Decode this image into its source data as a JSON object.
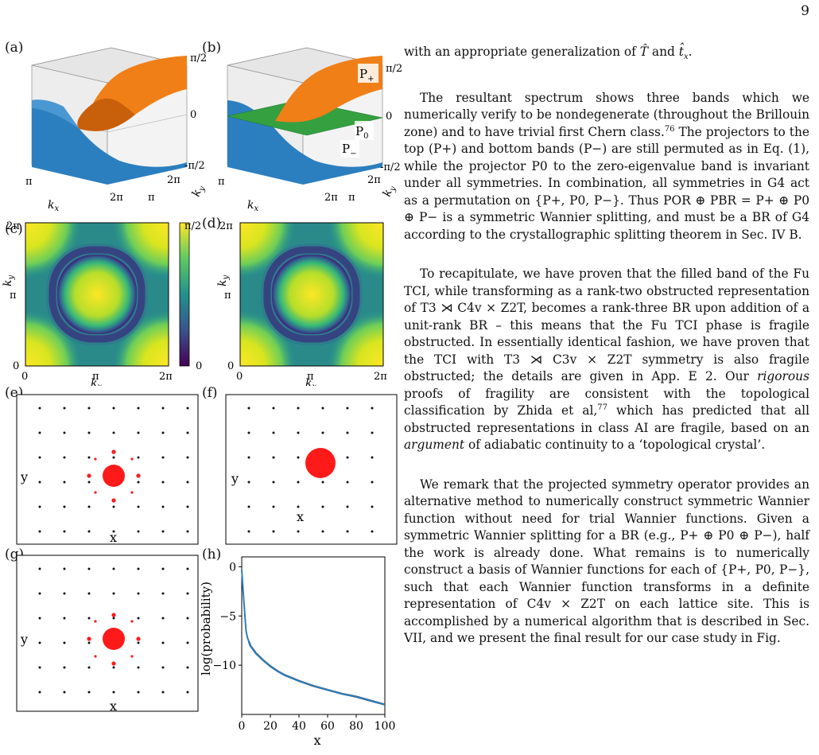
{
  "page_number": "9",
  "figure": {
    "panel_labels": {
      "a": "(a)",
      "b": "(b)",
      "c": "(c)",
      "d": "(d)",
      "e": "(e)",
      "f": "(f)",
      "g": "(g)",
      "h": "(h)"
    },
    "surface_ticks": {
      "z_top": "π/2",
      "z_mid": "0",
      "z_bottom": "-π/2",
      "kx_left": "π",
      "kx_right": "2π",
      "ky_back": "2π",
      "ky_front": "π",
      "kx_label": "k_x",
      "ky_label": "k_y"
    },
    "band_labels": {
      "p_plus": "P+",
      "p_zero": "P0",
      "p_minus": "P−"
    },
    "heatmap": {
      "x_ticks": [
        "0",
        "π",
        "2π"
      ],
      "y_ticks": [
        "0",
        "π",
        "2π"
      ],
      "xlabel": "k_x",
      "ylabel": "k_y",
      "cbar_top": "π/2",
      "cbar_bottom": "0"
    },
    "wannier": {
      "xlabel": "x",
      "ylabel": "y"
    },
    "colors": {
      "orange": "#f07f18",
      "blue": "#2c7fbf",
      "green": "#34a040",
      "red": "#ff1a1a"
    }
  },
  "chart_data": {
    "type": "line",
    "panel": "(h)",
    "xlabel": "x",
    "ylabel": "log(probability)",
    "xlim": [
      0,
      100
    ],
    "ylim": [
      -15,
      1
    ],
    "x_ticks": [
      0,
      20,
      40,
      60,
      80,
      100
    ],
    "y_ticks": [
      0,
      -5,
      -10
    ],
    "series": [
      {
        "x": [
          0,
          1,
          2,
          3,
          4,
          5,
          6,
          8,
          10,
          15,
          20,
          25,
          30,
          40,
          50,
          60,
          70,
          80,
          90,
          100
        ],
        "y": [
          -0.3,
          -2.5,
          -4.5,
          -6.5,
          -7.2,
          -7.6,
          -8.0,
          -8.4,
          -8.8,
          -9.5,
          -10.1,
          -10.6,
          -11.0,
          -11.6,
          -12.1,
          -12.5,
          -12.9,
          -13.2,
          -13.6,
          -14.0
        ]
      }
    ]
  },
  "paragraphs": [
    {
      "parts": [
        "with an appropriate generalization of ",
        "T̂",
        " and ",
        "t̂",
        "x",
        "."
      ]
    },
    {
      "text": "The resultant spectrum shows three bands which we numerically verify to be nondegenerate (throughout the Brillouin zone) and to have trivial first Chern class."
    }
  ],
  "text": {
    "p1": "with an appropriate generalization of T̂ and t̂x.",
    "p2a": "The resultant spectrum shows three bands which we numerically verify to be nondegenerate (throughout the Brillouin zone) and to have trivial first Chern class.",
    "p2_ref": "76",
    "p2b": " The projectors to the top (P+) and bottom bands (P−) are still permuted as in Eq. (1), while the projector P0 to the zero-eigenvalue band is invariant under all symmetries. In combination, all symmetries in G4 act as a permutation on {P+, P0, P−}. Thus POR ⊕ PBR = P+ ⊕ P0 ⊕ P− is a symmetric Wannier splitting, and must be a BR of G4 according to the crystallographic splitting theorem in Sec. IV B.",
    "p3a": "To recapitulate, we have proven that the filled band of the Fu TCI, while transforming as a rank-two obstructed representation of T3 ⋊ C4v × Z2T, becomes a rank-three BR upon addition of a unit-rank BR – this means that the Fu TCI phase is fragile obstructed. In essentially identical fashion, we have proven that the TCI with T3 ⋊ C3v × Z2T symmetry is also fragile obstructed; the details are given in App. E 2. Our ",
    "p3_rig": "rigorous",
    "p3b": " proofs of fragility are consistent with the topological classification by Zhida et al,",
    "p3_ref": "77",
    "p3c": " which has predicted that all obstructed representations in class AI are fragile, based on an ",
    "p3_arg": "argument",
    "p3d": " of adiabatic continuity to a ‘topological crystal’.",
    "p4": "We remark that the projected symmetry operator provides an alternative method to numerically construct symmetric Wannier function without need for trial Wannier functions. Given a symmetric Wannier splitting for a BR (e.g., P+ ⊕ P0 ⊕ P−), half the work is already done. What remains is to numerically construct a basis of Wannier functions for each of {P+, P0, P−}, such that each Wannier function transforms in a definite representation of C4v × Z2T on each lattice site. This is accomplished by a numerical algorithm that is described in Sec. VII, and we present the final result for our case study in Fig."
  }
}
